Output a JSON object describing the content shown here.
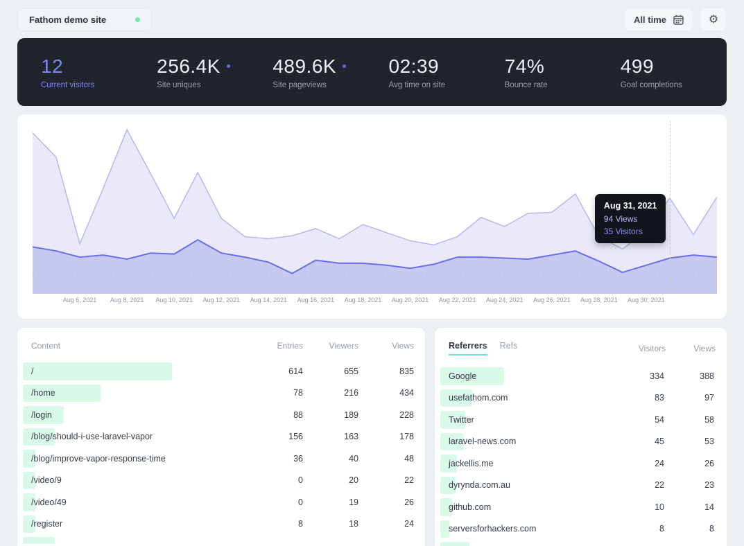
{
  "colors": {
    "accent_purple": "#6467e8",
    "views_fill": "#e9e9fa",
    "views_stroke": "#b3b4ee",
    "visitors_fill": "#c8c9f1",
    "visitors_stroke": "#6b6ee8",
    "mint_bar": "#d9f9e9",
    "mint_dot": "#6ee7b7",
    "dark_bar_bg": "#20242d"
  },
  "header": {
    "site_name": "Fathom demo site",
    "date_range_label": "All time",
    "gear_glyph": "⚙"
  },
  "stats": [
    {
      "value": "12",
      "label": "Current visitors",
      "accent": true,
      "dot": false
    },
    {
      "value": "256.4K",
      "label": "Site uniques",
      "accent": false,
      "dot": true
    },
    {
      "value": "489.6K",
      "label": "Site pageviews",
      "accent": false,
      "dot": true
    },
    {
      "value": "02:39",
      "label": "Avg time on site",
      "accent": false,
      "dot": false
    },
    {
      "value": "74%",
      "label": "Bounce rate",
      "accent": false,
      "dot": false
    },
    {
      "value": "499",
      "label": "Goal completions",
      "accent": false,
      "dot": false
    }
  ],
  "chart_data": {
    "type": "area",
    "title": "",
    "xlabel": "",
    "ylabel": "",
    "ylim": [
      0,
      170
    ],
    "grid": false,
    "legend_position": "none",
    "x": [
      "Aug 4",
      "Aug 5",
      "Aug 6",
      "Aug 7",
      "Aug 8",
      "Aug 9",
      "Aug 10",
      "Aug 11",
      "Aug 12",
      "Aug 13",
      "Aug 14",
      "Aug 15",
      "Aug 16",
      "Aug 17",
      "Aug 18",
      "Aug 19",
      "Aug 20",
      "Aug 21",
      "Aug 22",
      "Aug 23",
      "Aug 24",
      "Aug 25",
      "Aug 26",
      "Aug 27",
      "Aug 28",
      "Aug 29",
      "Aug 30",
      "Aug 31",
      "Sep 1",
      "Sep 2"
    ],
    "series": [
      {
        "name": "Views",
        "values": [
          158,
          134,
          49,
          104,
          161,
          118,
          74,
          119,
          74,
          56,
          54,
          57,
          64,
          54,
          68,
          60,
          52,
          48,
          56,
          75,
          66,
          79,
          80,
          98,
          56,
          44,
          62,
          94,
          58,
          95
        ]
      },
      {
        "name": "Visitors",
        "values": [
          46,
          42,
          36,
          38,
          34,
          40,
          39,
          53,
          40,
          36,
          31,
          20,
          33,
          30,
          30,
          28,
          25,
          29,
          36,
          36,
          35,
          34,
          38,
          42,
          32,
          21,
          28,
          35,
          38,
          36
        ]
      }
    ],
    "xtick_labels": [
      {
        "label": "Aug 6, 2021",
        "index": 2
      },
      {
        "label": "Aug 8, 2021",
        "index": 4
      },
      {
        "label": "Aug 10, 2021",
        "index": 6
      },
      {
        "label": "Aug 12, 2021",
        "index": 8
      },
      {
        "label": "Aug 14, 2021",
        "index": 10
      },
      {
        "label": "Aug 16, 2021",
        "index": 12
      },
      {
        "label": "Aug 18, 2021",
        "index": 14
      },
      {
        "label": "Aug 20, 2021",
        "index": 16
      },
      {
        "label": "Aug 22, 2021",
        "index": 18
      },
      {
        "label": "Aug 24, 2021",
        "index": 20
      },
      {
        "label": "Aug 26, 2021",
        "index": 22
      },
      {
        "label": "Aug 28, 2021",
        "index": 24
      },
      {
        "label": "Aug 30, 2021",
        "index": 26
      }
    ],
    "tooltip": {
      "date": "Aug 31, 2021",
      "views_line": "94 Views",
      "visitors_line": "35 Visitors",
      "hover_index": 27
    }
  },
  "content_panel": {
    "title": "Content",
    "columns": [
      "Entries",
      "Viewers",
      "Views"
    ],
    "max_views": 835,
    "rows": [
      {
        "path": "/",
        "entries": "614",
        "viewers": "655",
        "views": "835"
      },
      {
        "path": "/home",
        "entries": "78",
        "viewers": "216",
        "views": "434"
      },
      {
        "path": "/login",
        "entries": "88",
        "viewers": "189",
        "views": "228"
      },
      {
        "path": "/blog/should-i-use-laravel-vapor",
        "entries": "156",
        "viewers": "163",
        "views": "178"
      },
      {
        "path": "/blog/improve-vapor-response-time",
        "entries": "36",
        "viewers": "40",
        "views": "48"
      },
      {
        "path": "/video/9",
        "entries": "0",
        "viewers": "20",
        "views": "22"
      },
      {
        "path": "/video/49",
        "entries": "0",
        "viewers": "19",
        "views": "26"
      },
      {
        "path": "/register",
        "entries": "8",
        "viewers": "18",
        "views": "24"
      }
    ]
  },
  "referrers_panel": {
    "tabs": [
      "Referrers",
      "Refs"
    ],
    "active_tab": "Referrers",
    "columns": [
      "Visitors",
      "Views"
    ],
    "max_views": 388,
    "rows": [
      {
        "name": "Google",
        "visitors": "334",
        "views": "388"
      },
      {
        "name": "usefathom.com",
        "visitors": "83",
        "views": "97"
      },
      {
        "name": "Twitter",
        "visitors": "54",
        "views": "58"
      },
      {
        "name": "laravel-news.com",
        "visitors": "45",
        "views": "53"
      },
      {
        "name": "jackellis.me",
        "visitors": "24",
        "views": "26"
      },
      {
        "name": "dyrynda.com.au",
        "visitors": "22",
        "views": "23"
      },
      {
        "name": "github.com",
        "visitors": "10",
        "views": "14"
      },
      {
        "name": "serversforhackers.com",
        "visitors": "8",
        "views": "8"
      }
    ]
  }
}
